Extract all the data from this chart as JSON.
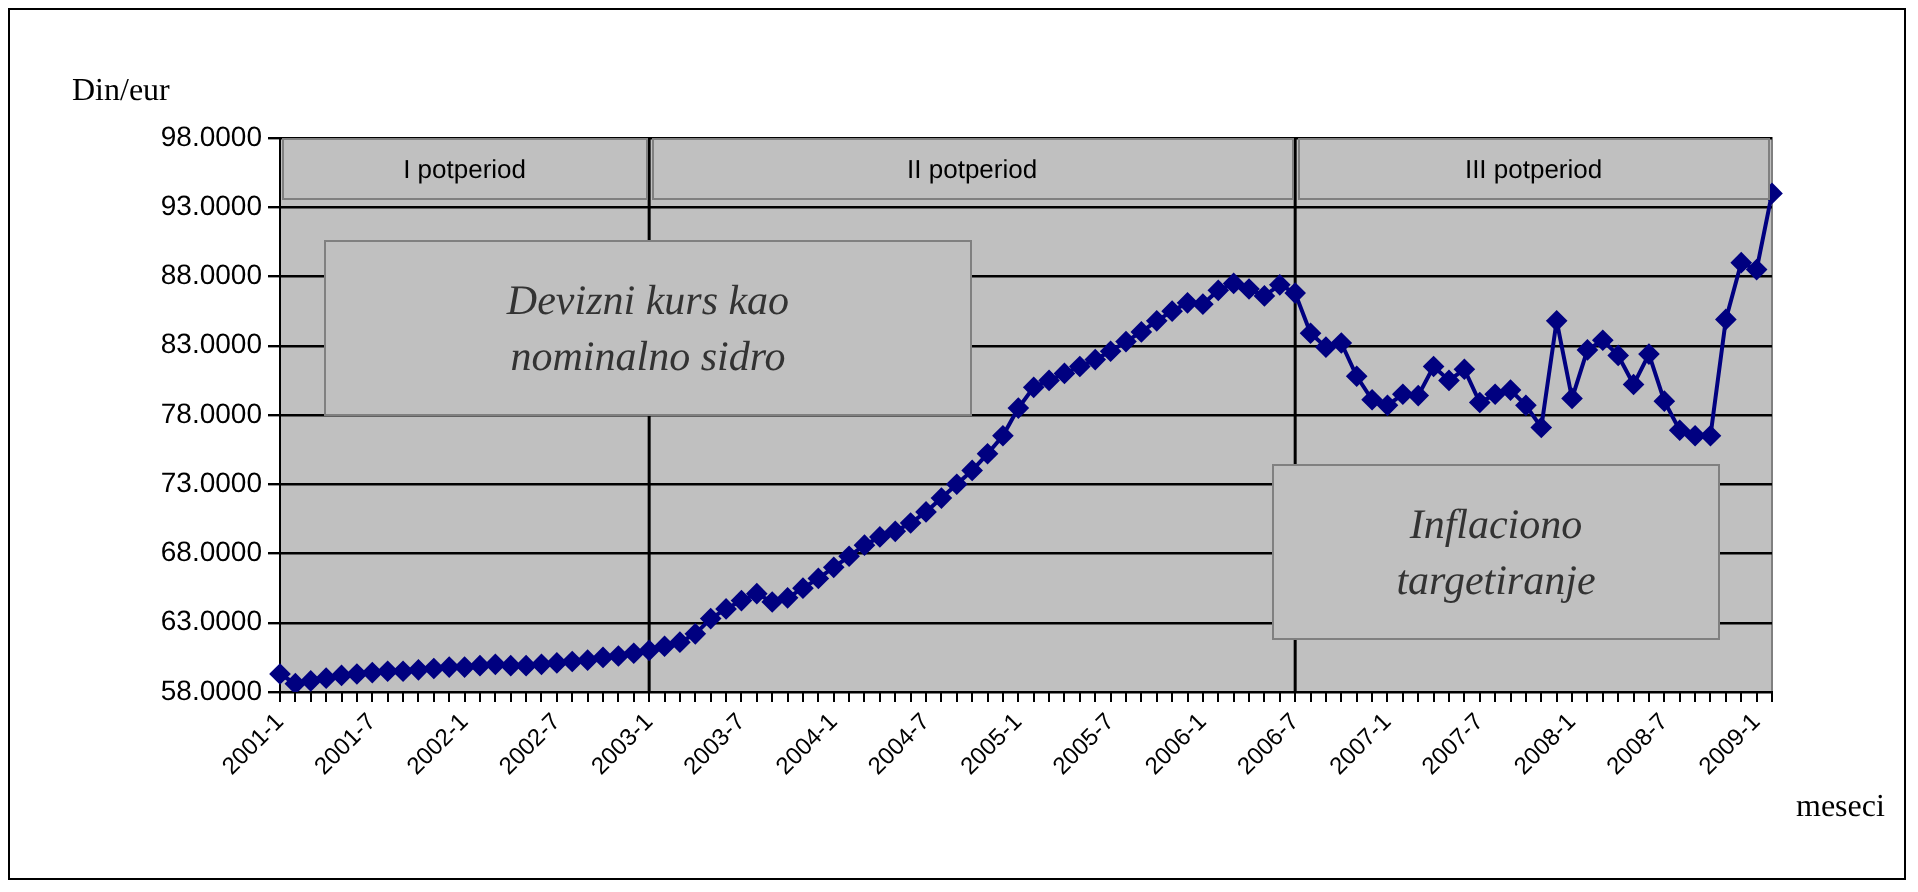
{
  "chart_data": {
    "type": "line",
    "ylabel": "Din/eur",
    "xlabel": "meseci",
    "categories": [
      "2001-1",
      null,
      null,
      null,
      null,
      null,
      "2001-7",
      null,
      null,
      null,
      null,
      null,
      "2002-1",
      null,
      null,
      null,
      null,
      null,
      "2002-7",
      null,
      null,
      null,
      null,
      null,
      "2003-1",
      null,
      null,
      null,
      null,
      null,
      "2003-7",
      null,
      null,
      null,
      null,
      null,
      "2004-1",
      null,
      null,
      null,
      null,
      null,
      "2004-7",
      null,
      null,
      null,
      null,
      null,
      "2005-1",
      null,
      null,
      null,
      null,
      null,
      "2005-7",
      null,
      null,
      null,
      null,
      null,
      "2006-1",
      null,
      null,
      null,
      null,
      null,
      "2006-7",
      null,
      null,
      null,
      null,
      null,
      "2007-1",
      null,
      null,
      null,
      null,
      null,
      "2007-7",
      null,
      null,
      null,
      null,
      null,
      "2008-1",
      null,
      null,
      null,
      null,
      null,
      "2008-7",
      null,
      null,
      null,
      null,
      null,
      "2009-1",
      null
    ],
    "series": [
      {
        "color": "#000080",
        "values": [
          59.3,
          58.6,
          58.8,
          59.0,
          59.2,
          59.3,
          59.4,
          59.5,
          59.5,
          59.6,
          59.7,
          59.8,
          59.8,
          59.9,
          60.0,
          59.9,
          59.9,
          60.0,
          60.1,
          60.2,
          60.3,
          60.5,
          60.6,
          60.8,
          61.0,
          61.3,
          61.6,
          62.2,
          63.3,
          64.0,
          64.6,
          65.1,
          64.5,
          64.8,
          65.5,
          66.2,
          67.0,
          67.8,
          68.6,
          69.2,
          69.6,
          70.2,
          71.0,
          72.0,
          73.0,
          74.0,
          75.2,
          76.5,
          78.5,
          80.0,
          80.5,
          81.0,
          81.5,
          82.0,
          82.6,
          83.3,
          84.0,
          84.8,
          85.5,
          86.1,
          86.0,
          87.0,
          87.5,
          87.1,
          86.6,
          87.4,
          86.8,
          83.9,
          82.9,
          83.2,
          80.8,
          79.1,
          78.7,
          79.5,
          79.4,
          81.5,
          80.5,
          81.3,
          78.9,
          79.5,
          79.8,
          78.7,
          77.1,
          84.8,
          79.2,
          82.7,
          83.4,
          82.3,
          80.2,
          82.4,
          79.0,
          76.9,
          76.5,
          76.5,
          84.9,
          89.0,
          88.5,
          94.0
        ]
      }
    ],
    "ylim": [
      58,
      98
    ],
    "yticks": [
      {
        "value": 58,
        "label": "58.0000"
      },
      {
        "value": 63,
        "label": "63.0000"
      },
      {
        "value": 68,
        "label": "68.0000"
      },
      {
        "value": 73,
        "label": "73.0000"
      },
      {
        "value": 78,
        "label": "78.0000"
      },
      {
        "value": 83,
        "label": "83.0000"
      },
      {
        "value": 88,
        "label": "88.0000"
      },
      {
        "value": 93,
        "label": "93.0000"
      },
      {
        "value": 98,
        "label": "98.0000"
      }
    ],
    "ref_lines": [
      {
        "axis": "x",
        "value": "2003-1"
      },
      {
        "axis": "x",
        "value": "2006-7"
      }
    ],
    "annotations": [
      "I potperiod",
      "II potperiod",
      "III potperiod",
      "Devizni kurs kao nominalno sidro",
      "Inflaciono targetiranje"
    ],
    "grid": "y",
    "legend": false,
    "marker": "diamond",
    "line_style": "solid"
  }
}
